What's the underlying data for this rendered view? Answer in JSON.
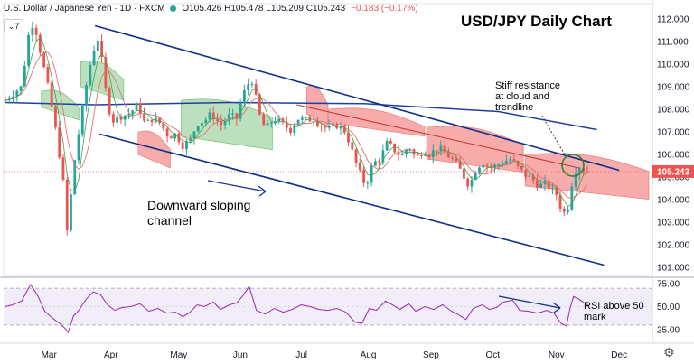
{
  "header": {
    "toggle_label": "7",
    "symbol": "U.S. Dollar / Japanese Yen · 1D · FXCM",
    "ohlc": "O105.426 H105.478 L105.209 C105.243",
    "change": "−0.183 (−0.17%)"
  },
  "chart_title": "USD/JPY Daily Chart",
  "annotations": {
    "resistance_1": "Stiff resistance",
    "resistance_2": "at cloud and",
    "resistance_3": "trendline",
    "channel_1": "Downward sloping",
    "channel_2": "channel",
    "rsi_1": "RSI above 50",
    "rsi_2": "mark"
  },
  "colors": {
    "up": "#26a69a",
    "down": "#ef5350",
    "channel": "#0d2e8a",
    "ma200": "#1c3fa0",
    "cloud_bull": "#a5d6a7",
    "cloud_bear": "#f48f8f",
    "rsi": "#9c27b0",
    "price_label": "#ef5350"
  },
  "chart_data": {
    "type": "candlestick",
    "title": "USD/JPY Daily Chart",
    "last_price": 105.243,
    "last_price_label": "105.243",
    "y_ticks": [
      "112.000",
      "111.000",
      "110.000",
      "109.000",
      "108.000",
      "107.000",
      "106.000",
      "105.000",
      "104.000",
      "103.000",
      "102.000",
      "101.000"
    ],
    "x_ticks": [
      "Mar",
      "Apr",
      "May",
      "Jun",
      "Jul",
      "Aug",
      "Sep",
      "Oct",
      "Nov",
      "Dec"
    ],
    "price_path": [
      [
        0,
        108.4
      ],
      [
        8,
        108.7
      ],
      [
        18,
        109.0
      ],
      [
        28,
        111.9
      ],
      [
        34,
        111.5
      ],
      [
        42,
        110.0
      ],
      [
        50,
        108.5
      ],
      [
        58,
        106.6
      ],
      [
        64,
        105.0
      ],
      [
        70,
        102.0
      ],
      [
        74,
        104.8
      ],
      [
        80,
        106.5
      ],
      [
        86,
        108.0
      ],
      [
        92,
        109.5
      ],
      [
        98,
        110.6
      ],
      [
        104,
        111.2
      ],
      [
        108,
        110.0
      ],
      [
        114,
        108.2
      ],
      [
        120,
        107.5
      ],
      [
        128,
        107.7
      ],
      [
        138,
        107.8
      ],
      [
        148,
        108.2
      ],
      [
        156,
        107.3
      ],
      [
        164,
        107.6
      ],
      [
        172,
        107.4
      ],
      [
        182,
        106.8
      ],
      [
        190,
        106.9
      ],
      [
        198,
        106.4
      ],
      [
        206,
        106.6
      ],
      [
        214,
        107.4
      ],
      [
        222,
        107.5
      ],
      [
        230,
        107.8
      ],
      [
        240,
        107.3
      ],
      [
        250,
        107.7
      ],
      [
        258,
        107.6
      ],
      [
        264,
        108.5
      ],
      [
        270,
        109.1
      ],
      [
        276,
        109.3
      ],
      [
        282,
        107.9
      ],
      [
        290,
        107.1
      ],
      [
        300,
        107.6
      ],
      [
        310,
        107.3
      ],
      [
        318,
        107.1
      ],
      [
        326,
        107.6
      ],
      [
        334,
        107.5
      ],
      [
        344,
        107.6
      ],
      [
        352,
        107.3
      ],
      [
        360,
        107.1
      ],
      [
        370,
        107.3
      ],
      [
        380,
        107.0
      ],
      [
        388,
        106.0
      ],
      [
        394,
        105.3
      ],
      [
        402,
        104.6
      ],
      [
        410,
        105.6
      ],
      [
        418,
        105.8
      ],
      [
        426,
        106.5
      ],
      [
        434,
        106.2
      ],
      [
        442,
        105.9
      ],
      [
        450,
        106.4
      ],
      [
        458,
        105.8
      ],
      [
        466,
        106.2
      ],
      [
        474,
        106.0
      ],
      [
        482,
        106.3
      ],
      [
        490,
        106.1
      ],
      [
        498,
        105.8
      ],
      [
        506,
        105.4
      ],
      [
        512,
        105.0
      ],
      [
        518,
        104.6
      ],
      [
        524,
        105.3
      ],
      [
        532,
        105.7
      ],
      [
        540,
        105.4
      ],
      [
        548,
        105.5
      ],
      [
        556,
        105.7
      ],
      [
        564,
        105.8
      ],
      [
        572,
        105.4
      ],
      [
        580,
        105.1
      ],
      [
        588,
        104.9
      ],
      [
        596,
        104.6
      ],
      [
        604,
        104.7
      ],
      [
        610,
        104.4
      ],
      [
        616,
        104.2
      ],
      [
        620,
        103.6
      ],
      [
        626,
        103.3
      ],
      [
        630,
        104.2
      ],
      [
        634,
        105.2
      ],
      [
        640,
        105.5
      ],
      [
        646,
        105.3
      ],
      [
        650,
        105.24
      ]
    ],
    "ma200": [
      [
        0,
        108.3
      ],
      [
        100,
        108.2
      ],
      [
        250,
        108.3
      ],
      [
        400,
        108.25
      ],
      [
        550,
        107.9
      ],
      [
        660,
        107.1
      ]
    ],
    "channel_upper": [
      [
        100,
        111.7
      ],
      [
        685,
        105.3
      ]
    ],
    "channel_lower": [
      [
        105,
        106.9
      ],
      [
        668,
        101.1
      ]
    ],
    "resistance_trendline": [
      [
        325,
        108.2
      ],
      [
        640,
        105.4
      ]
    ],
    "rsi": {
      "ticks": [
        "75.00",
        "50.00",
        "25.00"
      ],
      "levels": [
        70,
        30
      ],
      "values": [
        [
          0,
          50
        ],
        [
          8,
          52
        ],
        [
          18,
          56
        ],
        [
          28,
          74
        ],
        [
          36,
          62
        ],
        [
          44,
          45
        ],
        [
          52,
          38
        ],
        [
          60,
          32
        ],
        [
          66,
          27
        ],
        [
          70,
          22
        ],
        [
          76,
          40
        ],
        [
          82,
          46
        ],
        [
          90,
          58
        ],
        [
          98,
          66
        ],
        [
          106,
          63
        ],
        [
          114,
          52
        ],
        [
          122,
          46
        ],
        [
          130,
          49
        ],
        [
          140,
          50
        ],
        [
          150,
          53
        ],
        [
          160,
          45
        ],
        [
          170,
          48
        ],
        [
          180,
          43
        ],
        [
          190,
          44
        ],
        [
          198,
          39
        ],
        [
          206,
          44
        ],
        [
          214,
          52
        ],
        [
          222,
          50
        ],
        [
          232,
          55
        ],
        [
          240,
          47
        ],
        [
          250,
          52
        ],
        [
          258,
          54
        ],
        [
          266,
          63
        ],
        [
          272,
          72
        ],
        [
          280,
          46
        ],
        [
          290,
          42
        ],
        [
          300,
          48
        ],
        [
          310,
          44
        ],
        [
          320,
          47
        ],
        [
          330,
          52
        ],
        [
          340,
          50
        ],
        [
          350,
          47
        ],
        [
          360,
          46
        ],
        [
          370,
          48
        ],
        [
          380,
          44
        ],
        [
          390,
          33
        ],
        [
          398,
          32
        ],
        [
          406,
          48
        ],
        [
          414,
          46
        ],
        [
          424,
          56
        ],
        [
          432,
          52
        ],
        [
          440,
          47
        ],
        [
          450,
          53
        ],
        [
          458,
          45
        ],
        [
          468,
          50
        ],
        [
          478,
          47
        ],
        [
          488,
          52
        ],
        [
          498,
          45
        ],
        [
          506,
          41
        ],
        [
          514,
          36
        ],
        [
          522,
          48
        ],
        [
          532,
          52
        ],
        [
          540,
          47
        ],
        [
          548,
          49
        ],
        [
          556,
          55
        ],
        [
          566,
          57
        ],
        [
          574,
          46
        ],
        [
          584,
          45
        ],
        [
          594,
          43
        ],
        [
          604,
          46
        ],
        [
          612,
          43
        ],
        [
          620,
          32
        ],
        [
          626,
          29
        ],
        [
          630,
          48
        ],
        [
          634,
          61
        ],
        [
          640,
          58
        ],
        [
          646,
          54
        ],
        [
          650,
          52
        ]
      ]
    }
  }
}
